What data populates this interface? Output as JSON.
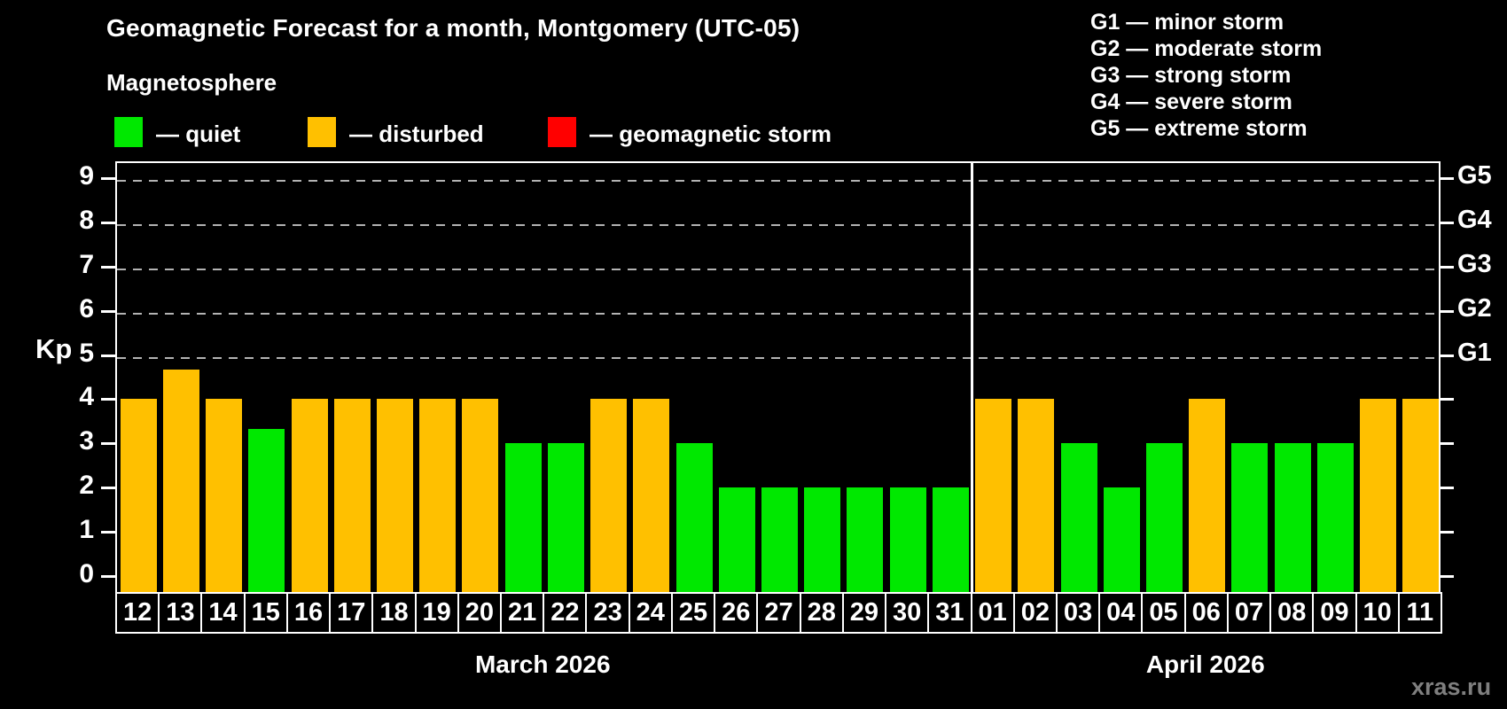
{
  "header": {
    "title": "Geomagnetic Forecast for a month, Montgomery (UTC-05)",
    "subtitle": "Magnetosphere",
    "legend": [
      {
        "key": "quiet",
        "label": "— quiet",
        "color": "#00e800"
      },
      {
        "key": "disturbed",
        "label": "— disturbed",
        "color": "#ffc000"
      },
      {
        "key": "storm",
        "label": "— geomagnetic storm",
        "color": "#ff0000"
      }
    ],
    "g_legend": [
      "G1 — minor storm",
      "G2 — moderate storm",
      "G3 — strong storm",
      "G4 — severe storm",
      "G5 — extreme storm"
    ]
  },
  "watermark": "xras.ru",
  "chart_data": {
    "type": "bar",
    "title": "Geomagnetic Forecast for a month, Montgomery (UTC-05)",
    "ylabel": "Kp",
    "ylim": [
      0,
      9.4
    ],
    "yticks": [
      0,
      1,
      2,
      3,
      4,
      5,
      6,
      7,
      8,
      9
    ],
    "gridlines": {
      "values": [
        5,
        6,
        7,
        8,
        9
      ],
      "style": "dashed",
      "color": "#b3b3b3"
    },
    "right_axis": [
      {
        "value": 5,
        "label": "G1"
      },
      {
        "value": 6,
        "label": "G2"
      },
      {
        "value": 7,
        "label": "G3"
      },
      {
        "value": 8,
        "label": "G4"
      },
      {
        "value": 9,
        "label": "G5"
      }
    ],
    "colors": {
      "quiet": "#00e800",
      "disturbed": "#ffc000",
      "storm": "#ff0000"
    },
    "groups": [
      {
        "label": "March 2026",
        "points": [
          {
            "day": "12",
            "kp": 4,
            "state": "disturbed"
          },
          {
            "day": "13",
            "kp": 4.67,
            "state": "disturbed"
          },
          {
            "day": "14",
            "kp": 4,
            "state": "disturbed"
          },
          {
            "day": "15",
            "kp": 3.33,
            "state": "quiet"
          },
          {
            "day": "16",
            "kp": 4,
            "state": "disturbed"
          },
          {
            "day": "17",
            "kp": 4,
            "state": "disturbed"
          },
          {
            "day": "18",
            "kp": 4,
            "state": "disturbed"
          },
          {
            "day": "19",
            "kp": 4,
            "state": "disturbed"
          },
          {
            "day": "20",
            "kp": 4,
            "state": "disturbed"
          },
          {
            "day": "21",
            "kp": 3,
            "state": "quiet"
          },
          {
            "day": "22",
            "kp": 3,
            "state": "quiet"
          },
          {
            "day": "23",
            "kp": 4,
            "state": "disturbed"
          },
          {
            "day": "24",
            "kp": 4,
            "state": "disturbed"
          },
          {
            "day": "25",
            "kp": 3,
            "state": "quiet"
          },
          {
            "day": "26",
            "kp": 2,
            "state": "quiet"
          },
          {
            "day": "27",
            "kp": 2,
            "state": "quiet"
          },
          {
            "day": "28",
            "kp": 2,
            "state": "quiet"
          },
          {
            "day": "29",
            "kp": 2,
            "state": "quiet"
          },
          {
            "day": "30",
            "kp": 2,
            "state": "quiet"
          },
          {
            "day": "31",
            "kp": 2,
            "state": "quiet"
          }
        ]
      },
      {
        "label": "April 2026",
        "points": [
          {
            "day": "01",
            "kp": 4,
            "state": "disturbed"
          },
          {
            "day": "02",
            "kp": 4,
            "state": "disturbed"
          },
          {
            "day": "03",
            "kp": 3,
            "state": "quiet"
          },
          {
            "day": "04",
            "kp": 2,
            "state": "quiet"
          },
          {
            "day": "05",
            "kp": 3,
            "state": "quiet"
          },
          {
            "day": "06",
            "kp": 4,
            "state": "disturbed"
          },
          {
            "day": "07",
            "kp": 3,
            "state": "quiet"
          },
          {
            "day": "08",
            "kp": 3,
            "state": "quiet"
          },
          {
            "day": "09",
            "kp": 3,
            "state": "quiet"
          },
          {
            "day": "10",
            "kp": 4,
            "state": "disturbed"
          },
          {
            "day": "11",
            "kp": 4,
            "state": "disturbed"
          }
        ]
      }
    ]
  }
}
